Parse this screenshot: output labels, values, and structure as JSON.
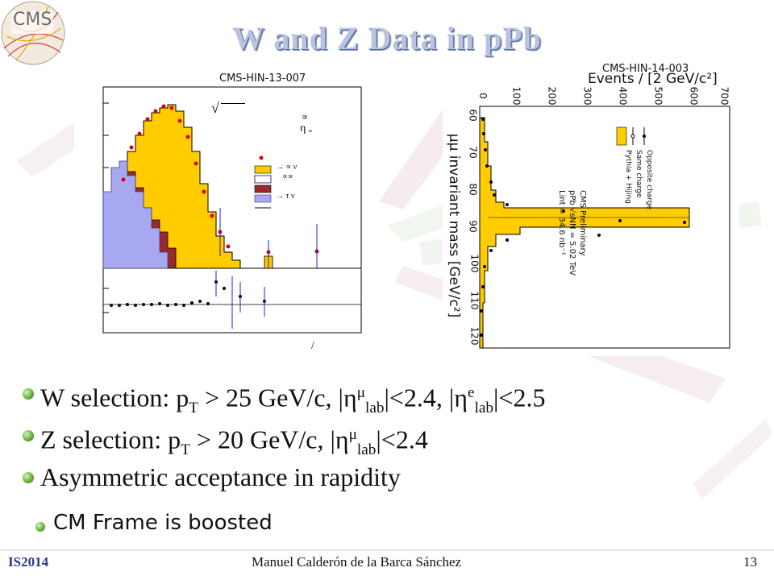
{
  "slide": {
    "title": "W and Z Data in pPb",
    "logo_text": "CMS",
    "footer_left": "IS2014",
    "footer_center": "Manuel Calderón de la Barca Sánchez",
    "page_number": "13"
  },
  "plot_left": {
    "label": "CMS-HIN-13-007",
    "legend_symbols": [
      "√",
      "∝",
      "η",
      "∝",
      "→ ∝ ν",
      "∝∝",
      "→ τ ν"
    ],
    "axis_fragment": "/"
  },
  "plot_right": {
    "label": "CMS-HIN-14-003",
    "ylabel": "Events / [2 GeV/c²]",
    "xlabel": "μμ invariant mass [GeV/c²]",
    "yticks": [
      "0",
      "100",
      "200",
      "300",
      "400",
      "500",
      "600",
      "700"
    ],
    "xticks": [
      "60",
      "70",
      "80",
      "90",
      "100",
      "110",
      "120"
    ],
    "legend": {
      "experiment": "CMS Preliminary",
      "energy": "pPb √sNN = 5.02 TeV",
      "lumi": "Lint = 34.6 nb⁻¹",
      "entries": [
        "Opposite charge",
        "Same charge",
        "Pythia + Hijing"
      ]
    }
  },
  "bullets": {
    "b1": {
      "a": "W selection: p",
      "a_sub": "T",
      "b": " > 25 GeV/c, |η",
      "b_sup": "μ",
      "b_sub": "lab",
      "c": "|<2.4, |η",
      "c_sup": "e",
      "c_sub": "lab",
      "d": "|<2.5"
    },
    "b2": {
      "a": "Z selection: p",
      "a_sub": "T",
      "b": " > 20 GeV/c, |η",
      "b_sup": "μ",
      "b_sub": "lab",
      "c": "|<2.4"
    },
    "b3": "Asymmetric acceptance in rapidity",
    "sub1": "CM Frame is boosted"
  },
  "colors": {
    "title": "#b8c4de",
    "w_signal": "#ffcc00",
    "qcd": "#9a2a2a",
    "tau": "#a8a8f0",
    "bullet": "#7bbf4d"
  }
}
